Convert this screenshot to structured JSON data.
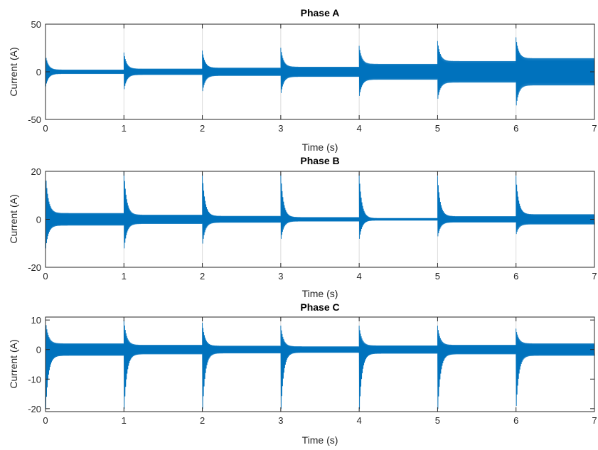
{
  "chart_data": [
    {
      "type": "line",
      "title": "Phase A",
      "xlabel": "Time (s)",
      "ylabel": "Current (A)",
      "xlim": [
        0,
        7
      ],
      "ylim": [
        -50,
        50
      ],
      "xticks": [
        0,
        1,
        2,
        3,
        4,
        5,
        6,
        7
      ],
      "yticks": [
        -50,
        0,
        50
      ],
      "grid": "x",
      "series_color": "#0072BD",
      "segments": [
        {
          "start": 0,
          "end": 1,
          "steady_amplitude": 2,
          "transient_peak_pos": 18,
          "transient_peak_neg": -15
        },
        {
          "start": 1,
          "end": 2,
          "steady_amplitude": 3,
          "transient_peak_pos": 20,
          "transient_peak_neg": -18
        },
        {
          "start": 2,
          "end": 3,
          "steady_amplitude": 4,
          "transient_peak_pos": 22,
          "transient_peak_neg": -20
        },
        {
          "start": 3,
          "end": 4,
          "steady_amplitude": 5,
          "transient_peak_pos": 25,
          "transient_peak_neg": -22
        },
        {
          "start": 4,
          "end": 5,
          "steady_amplitude": 8,
          "transient_peak_pos": 27,
          "transient_peak_neg": -25
        },
        {
          "start": 5,
          "end": 6,
          "steady_amplitude": 11,
          "transient_peak_pos": 32,
          "transient_peak_neg": -28
        },
        {
          "start": 6,
          "end": 7,
          "steady_amplitude": 14,
          "transient_peak_pos": 36,
          "transient_peak_neg": -35
        }
      ]
    },
    {
      "type": "line",
      "title": "Phase B",
      "xlabel": "Time (s)",
      "ylabel": "Current (A)",
      "xlim": [
        0,
        7
      ],
      "ylim": [
        -20,
        20
      ],
      "xticks": [
        0,
        1,
        2,
        3,
        4,
        5,
        6,
        7
      ],
      "yticks": [
        -20,
        0,
        20
      ],
      "grid": "x",
      "series_color": "#0072BD",
      "segments": [
        {
          "start": 0,
          "end": 1,
          "steady_amplitude": 2.5,
          "transient_peak_pos": 20,
          "transient_peak_neg": -12
        },
        {
          "start": 1,
          "end": 2,
          "steady_amplitude": 1.8,
          "transient_peak_pos": 20,
          "transient_peak_neg": -12
        },
        {
          "start": 2,
          "end": 3,
          "steady_amplitude": 1.3,
          "transient_peak_pos": 19,
          "transient_peak_neg": -10
        },
        {
          "start": 3,
          "end": 4,
          "steady_amplitude": 0.8,
          "transient_peak_pos": 19,
          "transient_peak_neg": -8
        },
        {
          "start": 4,
          "end": 5,
          "steady_amplitude": 0.4,
          "transient_peak_pos": 19,
          "transient_peak_neg": -8
        },
        {
          "start": 5,
          "end": 6,
          "steady_amplitude": 1.2,
          "transient_peak_pos": 18,
          "transient_peak_neg": -7
        },
        {
          "start": 6,
          "end": 7,
          "steady_amplitude": 2.0,
          "transient_peak_pos": 18,
          "transient_peak_neg": -6
        }
      ]
    },
    {
      "type": "line",
      "title": "Phase C",
      "xlabel": "Time (s)",
      "ylabel": "Current (A)",
      "xlim": [
        0,
        7
      ],
      "ylim": [
        -21,
        11
      ],
      "xticks": [
        0,
        1,
        2,
        3,
        4,
        5,
        6,
        7
      ],
      "yticks": [
        -20,
        -10,
        0,
        10
      ],
      "grid": "x",
      "series_color": "#0072BD",
      "segments": [
        {
          "start": 0,
          "end": 1,
          "steady_amplitude": 2.0,
          "transient_peak_pos": 10,
          "transient_peak_neg": -20
        },
        {
          "start": 1,
          "end": 2,
          "steady_amplitude": 1.5,
          "transient_peak_pos": 10,
          "transient_peak_neg": -20
        },
        {
          "start": 2,
          "end": 3,
          "steady_amplitude": 1.2,
          "transient_peak_pos": 9,
          "transient_peak_neg": -20
        },
        {
          "start": 3,
          "end": 4,
          "steady_amplitude": 1.0,
          "transient_peak_pos": 8,
          "transient_peak_neg": -20
        },
        {
          "start": 4,
          "end": 5,
          "steady_amplitude": 1.3,
          "transient_peak_pos": 8,
          "transient_peak_neg": -20
        },
        {
          "start": 5,
          "end": 6,
          "steady_amplitude": 1.5,
          "transient_peak_pos": 8,
          "transient_peak_neg": -20
        },
        {
          "start": 6,
          "end": 7,
          "steady_amplitude": 2.0,
          "transient_peak_pos": 7,
          "transient_peak_neg": -19
        }
      ]
    }
  ]
}
